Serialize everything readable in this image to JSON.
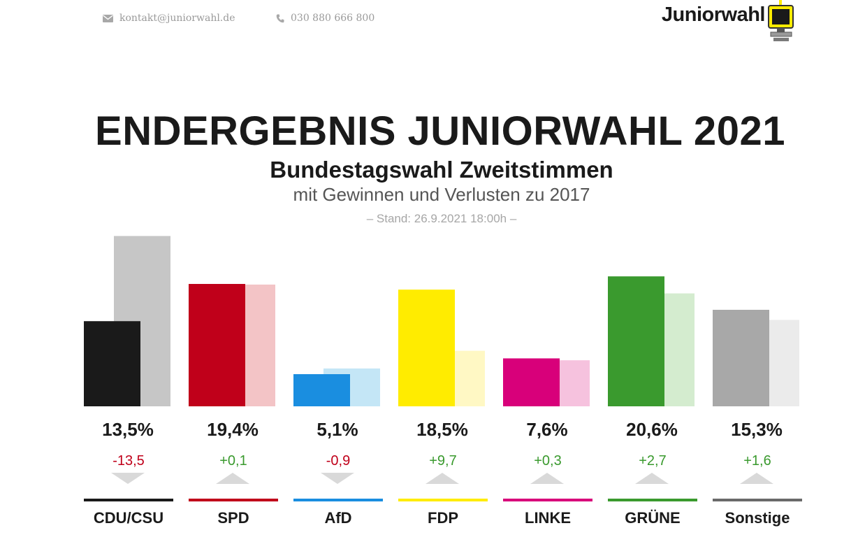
{
  "header": {
    "email": "kontakt@juniorwahl.de",
    "phone": "030 880 666 800",
    "logo_text": "Juniorwahl",
    "email_icon": "envelope-icon",
    "phone_icon": "phone-icon",
    "logo_icon": "computer-icon"
  },
  "chart_data": {
    "type": "bar",
    "title": "ENDERGEBNIS JUNIORWAHL 2021",
    "subtitle": "Bundestagswahl Zweitstimmen",
    "subtitle2": "mit Gewinnen und Verlusten zu 2017",
    "stand": "– Stand: 26.9.2021 18:00h –",
    "categories": [
      "CDU/CSU",
      "SPD",
      "AfD",
      "FDP",
      "LINKE",
      "GRÜNE",
      "Sonstige"
    ],
    "series": [
      {
        "values": [
          13.5,
          19.4,
          5.1,
          18.5,
          7.6,
          20.6,
          15.3
        ]
      },
      {
        "values": [
          27.0,
          19.3,
          6.0,
          8.8,
          7.3,
          17.9,
          13.7
        ]
      }
    ],
    "value_labels": [
      "13,5%",
      "19,4%",
      "5,1%",
      "18,5%",
      "7,6%",
      "20,6%",
      "15,3%"
    ],
    "diff_labels": [
      "-13,5",
      "+0,1",
      "-0,9",
      "+9,7",
      "+0,3",
      "+2,7",
      "+1,6"
    ],
    "diff_direction": [
      "down",
      "up",
      "down",
      "up",
      "up",
      "up",
      "up"
    ],
    "colors": [
      "#1a1a1a",
      "#c0001a",
      "#1a8ee0",
      "#ffec00",
      "#d8007a",
      "#3a9a2e",
      "#a8a8a8"
    ],
    "colors_2017": [
      "#c6c6c6",
      "#f3c4c6",
      "#c4e6f6",
      "#fff8c4",
      "#f6c2de",
      "#d4eccf",
      "#ebebeb"
    ],
    "diff_colors": {
      "up": "#3a9a2e",
      "down": "#c0001a"
    },
    "arrow_color": "#d9d9d9",
    "ylim": [
      0,
      30
    ],
    "grid": false,
    "legend": "none"
  }
}
